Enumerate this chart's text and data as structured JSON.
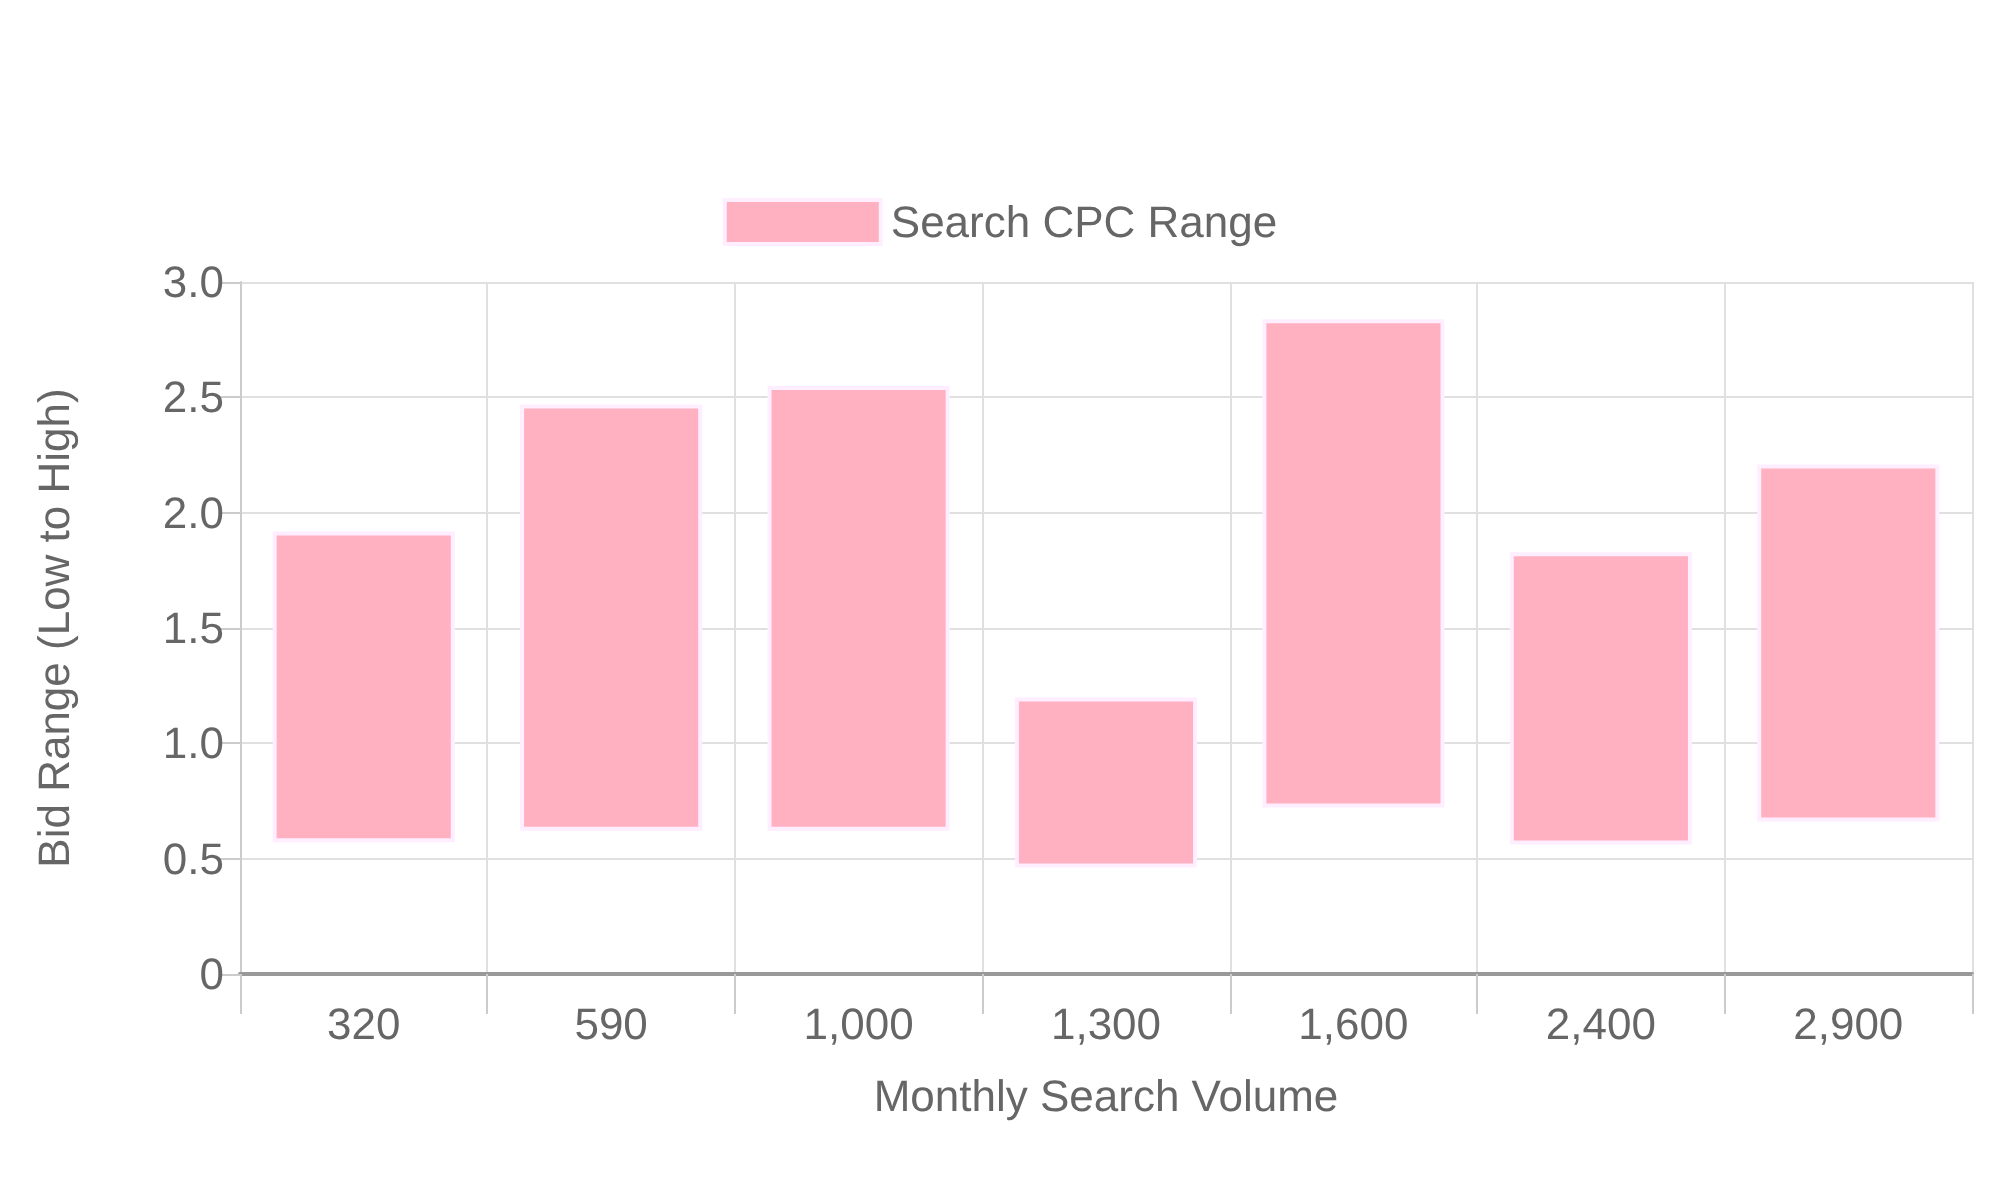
{
  "chart_data": {
    "type": "bar",
    "xlabel": "Monthly Search Volume",
    "ylabel": "Bid Range (Low to High)",
    "categories": [
      "320",
      "590",
      "1,000",
      "1,300",
      "1,600",
      "2,400",
      "2,900"
    ],
    "series": [
      {
        "name": "Search CPC Range",
        "color": "#ffb1c1",
        "base": [
          0.58,
          0.63,
          0.63,
          0.47,
          0.73,
          0.57,
          0.67
        ],
        "values": [
          1.33,
          1.83,
          1.91,
          0.72,
          2.1,
          1.25,
          1.53
        ]
      }
    ],
    "ylim": [
      0,
      3
    ],
    "yticks": [
      0,
      0.5,
      {
        "value": 1,
        "label": "1.0"
      },
      1.5,
      {
        "value": 2,
        "label": "2.0"
      },
      2.5,
      {
        "value": 3,
        "label": "3.0"
      }
    ],
    "grid": true,
    "legend": "top"
  }
}
